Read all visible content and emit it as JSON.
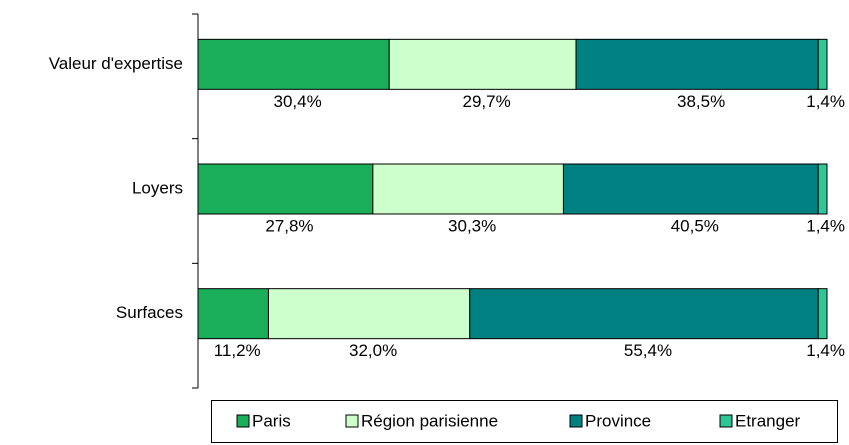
{
  "chart_data": {
    "type": "stacked-barh",
    "categories": [
      "Valeur d'expertise",
      "Loyers",
      "Surfaces"
    ],
    "xlim": [
      0,
      100
    ],
    "series": [
      {
        "name": "Paris",
        "color": "#1aad5a",
        "values": [
          30.4,
          27.8,
          11.2
        ],
        "value_labels": [
          "30,4%",
          "27,8%",
          "11,2%"
        ]
      },
      {
        "name": "Région parisienne",
        "color": "#ccffcc",
        "values": [
          29.7,
          30.3,
          32.0
        ],
        "value_labels": [
          "29,7%",
          "30,3%",
          "32,0%"
        ]
      },
      {
        "name": "Province",
        "color": "#008080",
        "values": [
          38.5,
          40.5,
          55.4
        ],
        "value_labels": [
          "38,5%",
          "40,5%",
          "55,4%"
        ]
      },
      {
        "name": "Etranger",
        "color": "#2ec795",
        "values": [
          1.4,
          1.4,
          1.4
        ],
        "value_labels": [
          "1,4%",
          "1,4%",
          "1,4%"
        ]
      }
    ],
    "legend": "bottom"
  }
}
